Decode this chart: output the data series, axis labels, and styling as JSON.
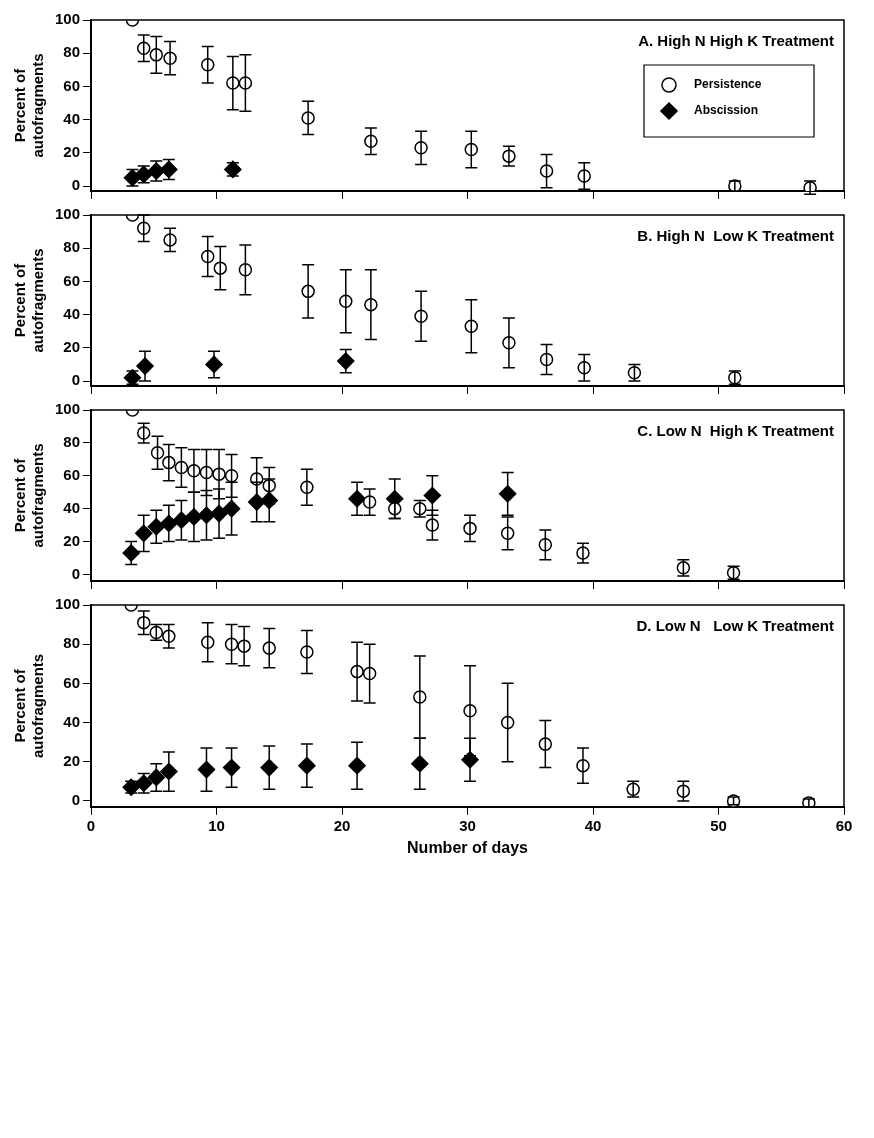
{
  "chart_data": [
    {
      "type": "scatter",
      "title": "A. High N High K Treatment",
      "ylabel": "Percent of autofragments",
      "xlim": [
        0,
        60
      ],
      "xticks": [
        0,
        10,
        20,
        30,
        40,
        50,
        60
      ],
      "ylim": [
        -3,
        100
      ],
      "yticks": [
        0,
        20,
        40,
        60,
        80,
        100
      ],
      "tick_labels": "y",
      "legend": "top right",
      "series": [
        {
          "name": "Persistence",
          "color": "#000000",
          "marker": "circle",
          "x": [
            3.3,
            4.2,
            5.2,
            6.3,
            9.3,
            11.3,
            12.3,
            17.3,
            22.3,
            26.3,
            30.3,
            33.3,
            36.3,
            39.3,
            51.3,
            57.3
          ],
          "values": [
            100,
            83,
            79,
            77,
            73,
            62,
            62,
            41,
            27,
            23,
            22,
            18,
            9,
            6,
            0,
            -1
          ],
          "errors": [
            null,
            8,
            11,
            10,
            11,
            16,
            17,
            10,
            8,
            10,
            11,
            6,
            10,
            8,
            3,
            4
          ]
        },
        {
          "name": "Abscission",
          "color": "#000000",
          "marker": "diamond",
          "x": [
            3.3,
            4.2,
            5.2,
            6.2,
            11.3
          ],
          "values": [
            5,
            7,
            9,
            10,
            10
          ],
          "errors": [
            5,
            5,
            6,
            6,
            4
          ]
        }
      ]
    },
    {
      "type": "scatter",
      "title": "B. High N  Low K Treatment",
      "ylabel": "Percent of autofragments",
      "xlim": [
        0,
        60
      ],
      "xticks": [
        0,
        10,
        20,
        30,
        40,
        50,
        60
      ],
      "ylim": [
        -3,
        100
      ],
      "yticks": [
        0,
        20,
        40,
        60,
        80,
        100
      ],
      "tick_labels": "y",
      "series": [
        {
          "color": "#000000",
          "marker": "circle",
          "x": [
            3.3,
            4.2,
            6.3,
            9.3,
            10.3,
            12.3,
            17.3,
            20.3,
            22.3,
            26.3,
            30.3,
            33.3,
            36.3,
            39.3,
            43.3,
            51.3
          ],
          "values": [
            100,
            92,
            85,
            75,
            68,
            67,
            54,
            48,
            46,
            39,
            33,
            23,
            13,
            8,
            5,
            2
          ],
          "errors": [
            null,
            8,
            7,
            12,
            13,
            15,
            16,
            19,
            21,
            15,
            16,
            15,
            9,
            8,
            5,
            4
          ]
        },
        {
          "color": "#000000",
          "marker": "diamond",
          "x": [
            3.3,
            4.3,
            9.8,
            20.3
          ],
          "values": [
            2,
            9,
            10,
            12
          ],
          "errors": [
            4,
            9,
            8,
            7
          ]
        }
      ]
    },
    {
      "type": "scatter",
      "title": "C. Low N  High K Treatment",
      "ylabel": "Percent of autofragments",
      "xlim": [
        0,
        60
      ],
      "xticks": [
        0,
        10,
        20,
        30,
        40,
        50,
        60
      ],
      "ylim": [
        -4,
        100
      ],
      "yticks": [
        0,
        20,
        40,
        60,
        80,
        100
      ],
      "tick_labels": "y",
      "series": [
        {
          "color": "#000000",
          "marker": "circle",
          "x": [
            3.3,
            4.2,
            5.3,
            6.2,
            7.2,
            8.2,
            9.2,
            10.2,
            11.2,
            13.2,
            14.2,
            17.2,
            22.2,
            24.2,
            26.2,
            27.2,
            30.2,
            33.2,
            36.2,
            39.2,
            47.2,
            51.2
          ],
          "values": [
            100,
            86,
            74,
            68,
            65,
            63,
            62,
            61,
            60,
            58,
            54,
            53,
            44,
            40,
            40,
            30,
            28,
            25,
            18,
            13,
            4,
            1
          ],
          "errors": [
            null,
            6,
            10,
            11,
            12,
            13,
            14,
            15,
            13,
            13,
            11,
            11,
            8,
            6,
            5,
            9,
            8,
            10,
            9,
            6,
            5,
            4
          ]
        },
        {
          "color": "#000000",
          "marker": "diamond",
          "x": [
            3.2,
            4.2,
            5.2,
            6.2,
            7.2,
            8.2,
            9.2,
            10.2,
            11.2,
            13.2,
            14.2,
            21.2,
            24.2,
            27.2,
            33.2
          ],
          "values": [
            13,
            25,
            29,
            31,
            33,
            35,
            36,
            37,
            40,
            44,
            45,
            46,
            46,
            48,
            49
          ],
          "errors": [
            7,
            11,
            10,
            11,
            12,
            15,
            15,
            15,
            16,
            12,
            13,
            10,
            12,
            12,
            13
          ]
        }
      ]
    },
    {
      "type": "scatter",
      "title": "D. Low N   Low K Treatment",
      "xlabel": "Number of days",
      "ylabel": "Percent of autofragments",
      "xlim": [
        0,
        60
      ],
      "xticks": [
        0,
        10,
        20,
        30,
        40,
        50,
        60
      ],
      "ylim": [
        -3,
        100
      ],
      "yticks": [
        0,
        20,
        40,
        60,
        80,
        100
      ],
      "series": [
        {
          "color": "#000000",
          "marker": "circle",
          "x": [
            3.2,
            4.2,
            5.2,
            6.2,
            9.3,
            11.2,
            12.2,
            14.2,
            17.2,
            21.2,
            22.2,
            26.2,
            30.2,
            33.2,
            36.2,
            39.2,
            43.2,
            47.2,
            51.2,
            57.2
          ],
          "values": [
            100,
            91,
            86,
            84,
            81,
            80,
            79,
            78,
            76,
            66,
            65,
            53,
            46,
            40,
            29,
            18,
            6,
            5,
            0,
            -1
          ],
          "errors": [
            null,
            6,
            4,
            6,
            10,
            10,
            10,
            10,
            11,
            15,
            15,
            21,
            23,
            20,
            12,
            9,
            4,
            5,
            2,
            2
          ]
        },
        {
          "color": "#000000",
          "marker": "diamond",
          "x": [
            3.2,
            4.2,
            5.2,
            6.2,
            9.2,
            11.2,
            14.2,
            17.2,
            21.2,
            26.2,
            30.2
          ],
          "values": [
            7,
            9,
            12,
            15,
            16,
            17,
            17,
            18,
            18,
            19,
            21
          ],
          "errors": [
            3,
            5,
            7,
            10,
            11,
            10,
            11,
            11,
            12,
            13,
            11
          ]
        }
      ]
    }
  ]
}
